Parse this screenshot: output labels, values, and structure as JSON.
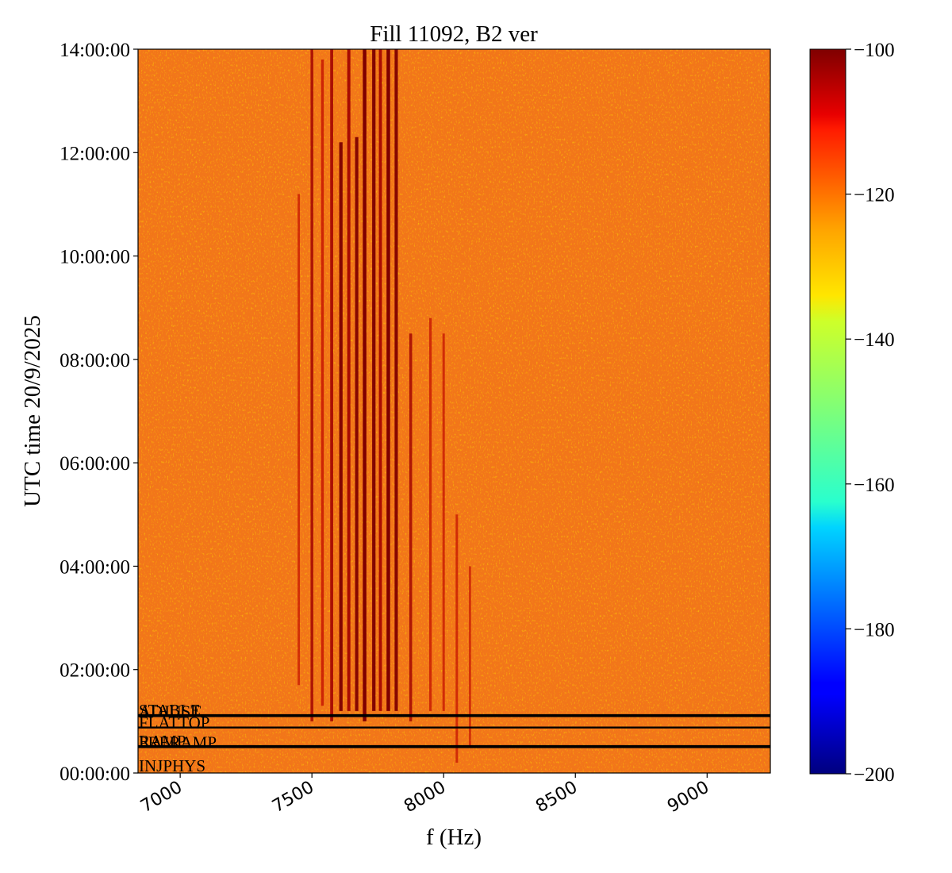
{
  "chart_data": {
    "type": "heatmap",
    "title": "Fill 11092, B2 ver",
    "xlabel": "f (Hz)",
    "ylabel": "UTC time 20/9/2025",
    "xlim": [
      6840,
      9240
    ],
    "ylim_hours": [
      0,
      14
    ],
    "x_ticks": [
      {
        "value": 7000,
        "label": "7000"
      },
      {
        "value": 7500,
        "label": "7500"
      },
      {
        "value": 8000,
        "label": "8000"
      },
      {
        "value": 8500,
        "label": "8500"
      },
      {
        "value": 9000,
        "label": "9000"
      }
    ],
    "y_ticks": [
      {
        "value": 0,
        "label": "00:00:00"
      },
      {
        "value": 2,
        "label": "02:00:00"
      },
      {
        "value": 4,
        "label": "04:00:00"
      },
      {
        "value": 6,
        "label": "06:00:00"
      },
      {
        "value": 8,
        "label": "08:00:00"
      },
      {
        "value": 10,
        "label": "10:00:00"
      },
      {
        "value": 12,
        "label": "12:00:00"
      },
      {
        "value": 14,
        "label": "14:00:00"
      }
    ],
    "colorbar": {
      "colormap": "jet",
      "range": [
        -200,
        -100
      ],
      "ticks": [
        {
          "value": -100,
          "label": "−100"
        },
        {
          "value": -120,
          "label": "−120"
        },
        {
          "value": -140,
          "label": "−140"
        },
        {
          "value": -160,
          "label": "−160"
        },
        {
          "value": -180,
          "label": "−180"
        },
        {
          "value": -200,
          "label": "−200"
        }
      ]
    },
    "background_level": -120,
    "spectral_lines": [
      {
        "f": 7450,
        "start_h": 1.7,
        "end_h": 11.2,
        "strength": 0.35
      },
      {
        "f": 7500,
        "start_h": 1.0,
        "end_h": 14.0,
        "strength": 0.6
      },
      {
        "f": 7540,
        "start_h": 1.3,
        "end_h": 13.8,
        "strength": 0.55
      },
      {
        "f": 7575,
        "start_h": 1.0,
        "end_h": 14.0,
        "strength": 0.7
      },
      {
        "f": 7610,
        "start_h": 1.2,
        "end_h": 12.2,
        "strength": 0.9
      },
      {
        "f": 7640,
        "start_h": 1.2,
        "end_h": 14.0,
        "strength": 0.8
      },
      {
        "f": 7670,
        "start_h": 1.2,
        "end_h": 12.3,
        "strength": 0.85
      },
      {
        "f": 7700,
        "start_h": 1.0,
        "end_h": 14.0,
        "strength": 1.0
      },
      {
        "f": 7735,
        "start_h": 1.2,
        "end_h": 14.0,
        "strength": 0.9
      },
      {
        "f": 7760,
        "start_h": 1.2,
        "end_h": 14.0,
        "strength": 0.75
      },
      {
        "f": 7790,
        "start_h": 1.2,
        "end_h": 14.0,
        "strength": 1.0
      },
      {
        "f": 7820,
        "start_h": 1.2,
        "end_h": 14.0,
        "strength": 0.85
      },
      {
        "f": 7875,
        "start_h": 1.0,
        "end_h": 8.5,
        "strength": 0.6
      },
      {
        "f": 7950,
        "start_h": 1.2,
        "end_h": 8.8,
        "strength": 0.45
      },
      {
        "f": 8000,
        "start_h": 1.2,
        "end_h": 8.5,
        "strength": 0.4
      },
      {
        "f": 8050,
        "start_h": 0.2,
        "end_h": 5.0,
        "strength": 0.4
      },
      {
        "f": 8100,
        "start_h": 0.5,
        "end_h": 4.0,
        "strength": 0.3
      }
    ],
    "phase_markers": [
      {
        "label": "STABLE",
        "time_h": 1.12
      },
      {
        "label": "ADJUST",
        "time_h": 1.1
      },
      {
        "label": "FLATTOP",
        "time_h": 0.88
      },
      {
        "label": "RAMP",
        "time_h": 0.52
      },
      {
        "label": "PRERAMP",
        "time_h": 0.5
      },
      {
        "label": "INJPHYS",
        "time_h": 0.0
      }
    ]
  }
}
